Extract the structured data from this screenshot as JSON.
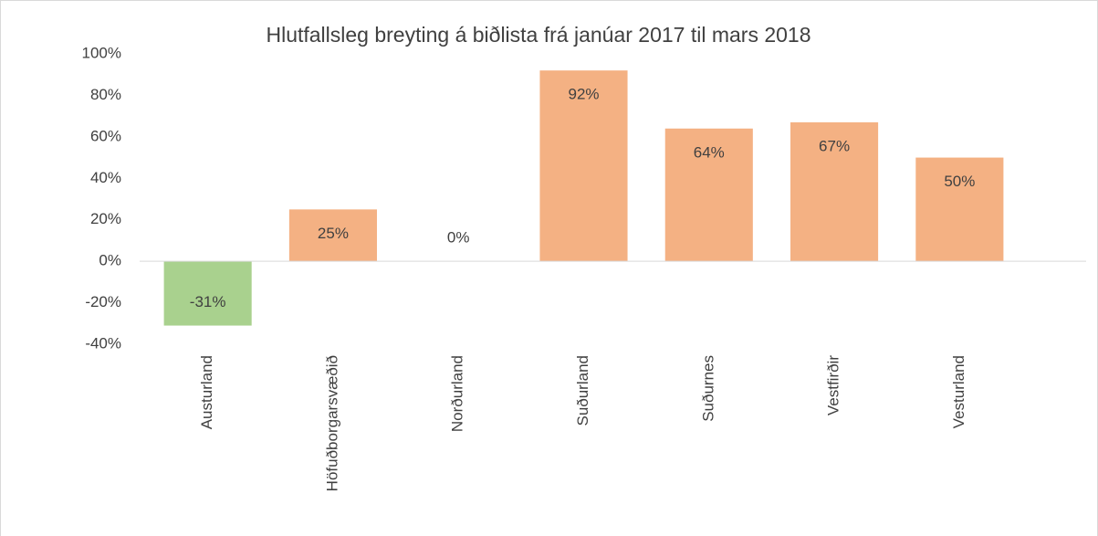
{
  "chart_data": {
    "type": "bar",
    "title": "Hlutfallsleg breyting á biðlista frá janúar 2017 til mars 2018",
    "categories": [
      "Austurland",
      "Höfuðborgarsvæðið",
      "Norðurland",
      "Suðurland",
      "Suðurnes",
      "Vestfirðir",
      "Vesturland"
    ],
    "values": [
      -31,
      25,
      0,
      92,
      64,
      67,
      50
    ],
    "value_labels": [
      "-31%",
      "25%",
      "0%",
      "92%",
      "64%",
      "67%",
      "50%"
    ],
    "colors": [
      "#a9d18e",
      "#f4b183",
      "#f4b183",
      "#f4b183",
      "#f4b183",
      "#f4b183",
      "#f4b183"
    ],
    "ylim": [
      -40,
      100
    ],
    "yticks": [
      {
        "value": -40,
        "label": "-40%"
      },
      {
        "value": -20,
        "label": "-20%"
      },
      {
        "value": 0,
        "label": "0%"
      },
      {
        "value": 20,
        "label": "20%"
      },
      {
        "value": 40,
        "label": "40%"
      },
      {
        "value": 60,
        "label": "60%"
      },
      {
        "value": 80,
        "label": "80%"
      },
      {
        "value": 100,
        "label": "100%"
      }
    ],
    "grid": false
  }
}
